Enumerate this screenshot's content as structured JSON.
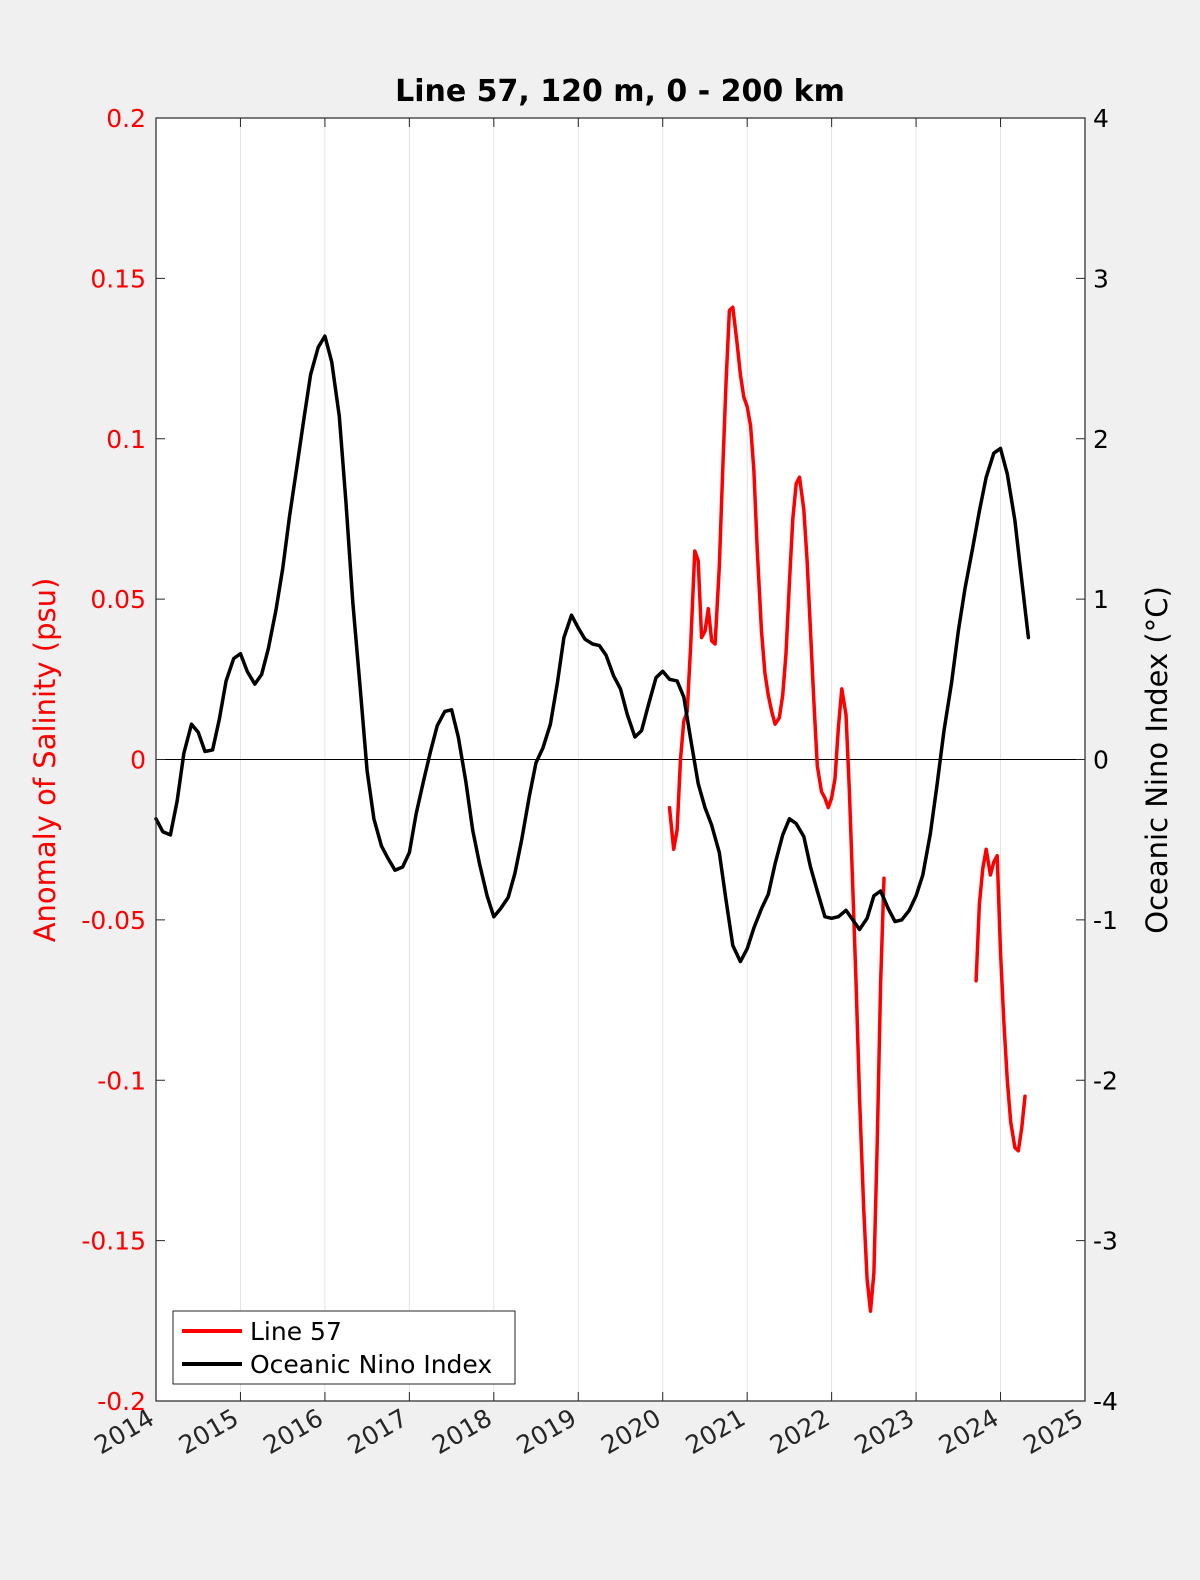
{
  "chart_data": {
    "type": "line",
    "title": "Line 57, 120 m, 0 - 200 km",
    "xlabel": "",
    "ylabel_left": "Anomaly of Salinity (psu)",
    "ylabel_right": "Oceanic Nino Index (°C)",
    "xlim": [
      2014,
      2025
    ],
    "ylim_left": [
      -0.2,
      0.2
    ],
    "ylim_right": [
      -4,
      4
    ],
    "x_ticks": [
      "2014",
      "2015",
      "2016",
      "2017",
      "2018",
      "2019",
      "2020",
      "2021",
      "2022",
      "2023",
      "2024",
      "2025"
    ],
    "y_left_ticks": [
      "0.2",
      "0.15",
      "0.1",
      "0.05",
      "0",
      "-0.05",
      "-0.1",
      "-0.15",
      "-0.2"
    ],
    "y_right_ticks": [
      "4",
      "3",
      "2",
      "1",
      "0",
      "-1",
      "-2",
      "-3",
      "-4"
    ],
    "grid": "vertical",
    "zero_line": true,
    "legend_position": "bottom-left",
    "series": [
      {
        "name": "Line 57",
        "axis": "left",
        "color": "#ff0000",
        "segments": [
          [
            [
              2020.08,
              -0.015
            ],
            [
              2020.13,
              -0.028
            ],
            [
              2020.17,
              -0.022
            ],
            [
              2020.21,
              0.0
            ],
            [
              2020.25,
              0.012
            ],
            [
              2020.29,
              0.015
            ],
            [
              2020.33,
              0.035
            ],
            [
              2020.38,
              0.065
            ],
            [
              2020.42,
              0.062
            ],
            [
              2020.46,
              0.038
            ],
            [
              2020.5,
              0.04
            ],
            [
              2020.54,
              0.047
            ],
            [
              2020.58,
              0.037
            ],
            [
              2020.62,
              0.036
            ],
            [
              2020.67,
              0.06
            ],
            [
              2020.71,
              0.09
            ],
            [
              2020.75,
              0.118
            ],
            [
              2020.79,
              0.14
            ],
            [
              2020.83,
              0.141
            ],
            [
              2020.88,
              0.13
            ],
            [
              2020.92,
              0.12
            ],
            [
              2020.96,
              0.113
            ],
            [
              2021.0,
              0.11
            ],
            [
              2021.04,
              0.104
            ],
            [
              2021.08,
              0.09
            ],
            [
              2021.12,
              0.065
            ],
            [
              2021.17,
              0.04
            ],
            [
              2021.21,
              0.027
            ],
            [
              2021.25,
              0.02
            ],
            [
              2021.29,
              0.015
            ],
            [
              2021.33,
              0.011
            ],
            [
              2021.38,
              0.013
            ],
            [
              2021.42,
              0.02
            ],
            [
              2021.46,
              0.033
            ],
            [
              2021.5,
              0.055
            ],
            [
              2021.54,
              0.075
            ],
            [
              2021.58,
              0.086
            ],
            [
              2021.62,
              0.088
            ],
            [
              2021.67,
              0.078
            ],
            [
              2021.71,
              0.062
            ],
            [
              2021.75,
              0.04
            ],
            [
              2021.79,
              0.018
            ],
            [
              2021.83,
              -0.002
            ],
            [
              2021.88,
              -0.01
            ],
            [
              2021.92,
              -0.012
            ],
            [
              2021.96,
              -0.015
            ],
            [
              2022.0,
              -0.012
            ],
            [
              2022.04,
              -0.006
            ],
            [
              2022.08,
              0.01
            ],
            [
              2022.12,
              0.022
            ],
            [
              2022.17,
              0.014
            ],
            [
              2022.21,
              -0.01
            ],
            [
              2022.25,
              -0.04
            ],
            [
              2022.29,
              -0.07
            ],
            [
              2022.33,
              -0.105
            ],
            [
              2022.38,
              -0.14
            ],
            [
              2022.42,
              -0.162
            ],
            [
              2022.46,
              -0.172
            ],
            [
              2022.5,
              -0.16
            ],
            [
              2022.54,
              -0.12
            ],
            [
              2022.58,
              -0.07
            ],
            [
              2022.62,
              -0.037
            ]
          ],
          [
            [
              2023.71,
              -0.069
            ],
            [
              2023.75,
              -0.045
            ],
            [
              2023.79,
              -0.034
            ],
            [
              2023.83,
              -0.028
            ],
            [
              2023.88,
              -0.036
            ],
            [
              2023.92,
              -0.032
            ],
            [
              2023.96,
              -0.03
            ],
            [
              2024.0,
              -0.06
            ],
            [
              2024.04,
              -0.082
            ],
            [
              2024.08,
              -0.1
            ],
            [
              2024.12,
              -0.113
            ],
            [
              2024.17,
              -0.121
            ],
            [
              2024.21,
              -0.122
            ],
            [
              2024.25,
              -0.115
            ],
            [
              2024.29,
              -0.105
            ]
          ]
        ]
      },
      {
        "name": "Oceanic Nino Index",
        "axis": "right",
        "color": "#000000",
        "segments": [
          [
            [
              2014.0,
              -0.37
            ],
            [
              2014.08,
              -0.45
            ],
            [
              2014.17,
              -0.47
            ],
            [
              2014.25,
              -0.26
            ],
            [
              2014.33,
              0.04
            ],
            [
              2014.42,
              0.22
            ],
            [
              2014.5,
              0.17
            ],
            [
              2014.58,
              0.05
            ],
            [
              2014.67,
              0.06
            ],
            [
              2014.75,
              0.25
            ],
            [
              2014.83,
              0.49
            ],
            [
              2014.92,
              0.63
            ],
            [
              2015.0,
              0.66
            ],
            [
              2015.08,
              0.55
            ],
            [
              2015.17,
              0.47
            ],
            [
              2015.25,
              0.53
            ],
            [
              2015.33,
              0.69
            ],
            [
              2015.42,
              0.93
            ],
            [
              2015.5,
              1.19
            ],
            [
              2015.58,
              1.51
            ],
            [
              2015.67,
              1.83
            ],
            [
              2015.75,
              2.12
            ],
            [
              2015.83,
              2.4
            ],
            [
              2015.92,
              2.57
            ],
            [
              2016.0,
              2.64
            ],
            [
              2016.08,
              2.48
            ],
            [
              2016.17,
              2.14
            ],
            [
              2016.25,
              1.6
            ],
            [
              2016.33,
              0.98
            ],
            [
              2016.42,
              0.43
            ],
            [
              2016.5,
              -0.07
            ],
            [
              2016.58,
              -0.37
            ],
            [
              2016.67,
              -0.54
            ],
            [
              2016.75,
              -0.62
            ],
            [
              2016.83,
              -0.69
            ],
            [
              2016.92,
              -0.67
            ],
            [
              2017.0,
              -0.58
            ],
            [
              2017.08,
              -0.34
            ],
            [
              2017.17,
              -0.13
            ],
            [
              2017.25,
              0.05
            ],
            [
              2017.33,
              0.21
            ],
            [
              2017.42,
              0.3
            ],
            [
              2017.5,
              0.31
            ],
            [
              2017.58,
              0.14
            ],
            [
              2017.67,
              -0.14
            ],
            [
              2017.75,
              -0.44
            ],
            [
              2017.83,
              -0.65
            ],
            [
              2017.92,
              -0.85
            ],
            [
              2018.0,
              -0.98
            ],
            [
              2018.08,
              -0.93
            ],
            [
              2018.17,
              -0.86
            ],
            [
              2018.25,
              -0.71
            ],
            [
              2018.33,
              -0.5
            ],
            [
              2018.42,
              -0.23
            ],
            [
              2018.5,
              -0.02
            ],
            [
              2018.58,
              0.07
            ],
            [
              2018.67,
              0.22
            ],
            [
              2018.75,
              0.47
            ],
            [
              2018.83,
              0.76
            ],
            [
              2018.92,
              0.9
            ],
            [
              2019.0,
              0.82
            ],
            [
              2019.08,
              0.75
            ],
            [
              2019.17,
              0.72
            ],
            [
              2019.25,
              0.71
            ],
            [
              2019.33,
              0.65
            ],
            [
              2019.42,
              0.52
            ],
            [
              2019.5,
              0.44
            ],
            [
              2019.58,
              0.28
            ],
            [
              2019.67,
              0.14
            ],
            [
              2019.75,
              0.18
            ],
            [
              2019.83,
              0.34
            ],
            [
              2019.92,
              0.51
            ],
            [
              2020.0,
              0.55
            ],
            [
              2020.08,
              0.5
            ],
            [
              2020.17,
              0.49
            ],
            [
              2020.25,
              0.39
            ],
            [
              2020.33,
              0.13
            ],
            [
              2020.42,
              -0.15
            ],
            [
              2020.5,
              -0.3
            ],
            [
              2020.58,
              -0.41
            ],
            [
              2020.67,
              -0.58
            ],
            [
              2020.75,
              -0.88
            ],
            [
              2020.83,
              -1.16
            ],
            [
              2020.92,
              -1.26
            ],
            [
              2021.0,
              -1.18
            ],
            [
              2021.08,
              -1.05
            ],
            [
              2021.17,
              -0.93
            ],
            [
              2021.25,
              -0.84
            ],
            [
              2021.33,
              -0.65
            ],
            [
              2021.42,
              -0.47
            ],
            [
              2021.5,
              -0.37
            ],
            [
              2021.58,
              -0.4
            ],
            [
              2021.67,
              -0.48
            ],
            [
              2021.75,
              -0.67
            ],
            [
              2021.83,
              -0.82
            ],
            [
              2021.92,
              -0.98
            ],
            [
              2022.0,
              -0.99
            ],
            [
              2022.08,
              -0.98
            ],
            [
              2022.17,
              -0.94
            ],
            [
              2022.25,
              -1.0
            ],
            [
              2022.33,
              -1.06
            ],
            [
              2022.42,
              -0.99
            ],
            [
              2022.5,
              -0.85
            ],
            [
              2022.58,
              -0.82
            ],
            [
              2022.67,
              -0.93
            ],
            [
              2022.75,
              -1.01
            ],
            [
              2022.83,
              -1.0
            ],
            [
              2022.92,
              -0.94
            ],
            [
              2023.0,
              -0.85
            ],
            [
              2023.08,
              -0.72
            ],
            [
              2023.17,
              -0.46
            ],
            [
              2023.25,
              -0.15
            ],
            [
              2023.33,
              0.18
            ],
            [
              2023.42,
              0.48
            ],
            [
              2023.5,
              0.8
            ],
            [
              2023.58,
              1.07
            ],
            [
              2023.67,
              1.32
            ],
            [
              2023.75,
              1.55
            ],
            [
              2023.83,
              1.76
            ],
            [
              2023.92,
              1.91
            ],
            [
              2024.0,
              1.94
            ],
            [
              2024.08,
              1.78
            ],
            [
              2024.17,
              1.49
            ],
            [
              2024.25,
              1.12
            ],
            [
              2024.33,
              0.76
            ]
          ]
        ]
      }
    ]
  }
}
